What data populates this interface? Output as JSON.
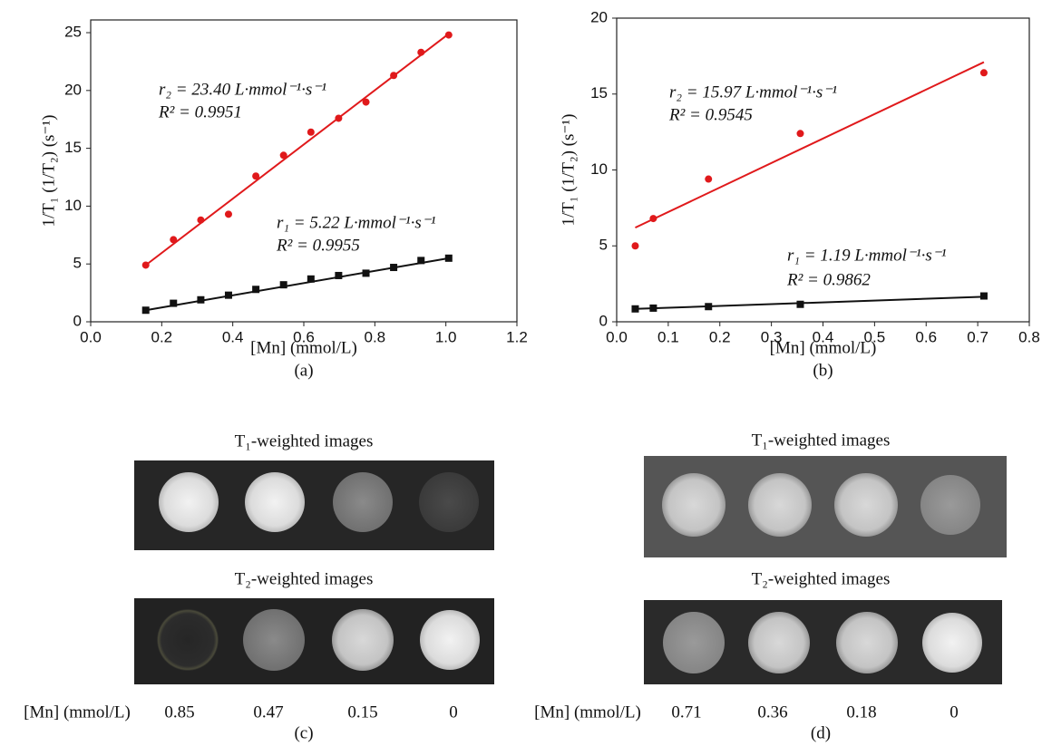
{
  "chart_data": [
    {
      "type": "scatter",
      "x_label": "[Mn] (mmol/L)",
      "y_label": "1/T₁ (1/T₂) (s⁻¹)",
      "caption": "(a)",
      "xlim": [
        0,
        1.2
      ],
      "xticks": [
        {
          "value": 0,
          "label": "0.0"
        },
        0.2,
        0.4,
        0.6,
        0.8,
        {
          "value": 1,
          "label": "1.0"
        },
        1.2
      ],
      "ylim": [
        0,
        26.1
      ],
      "yticks": [
        0,
        5,
        10,
        15,
        20,
        25
      ],
      "annotations": [
        "r₂ = 23.40 L·mmol⁻¹·s⁻¹",
        "R² = 0.9951",
        "r₁ = 5.22 L·mmol⁻¹·s⁻¹",
        "R² = 0.9955"
      ],
      "series": [
        {
          "color": "#e0191b",
          "marker": "circle",
          "x": [
            0.155,
            0.233,
            0.31,
            0.388,
            0.465,
            0.543,
            0.62,
            0.698,
            0.775,
            0.853,
            0.93,
            1.008
          ],
          "values": [
            4.9,
            7.1,
            8.8,
            9.3,
            12.6,
            14.4,
            16.4,
            17.6,
            19.0,
            21.3,
            23.3,
            24.8
          ],
          "fit_x": [
            0.155,
            1.008
          ],
          "fit_values": [
            4.9,
            24.9
          ]
        },
        {
          "color": "#111111",
          "marker": "square",
          "x": [
            0.155,
            0.233,
            0.31,
            0.388,
            0.465,
            0.543,
            0.62,
            0.698,
            0.775,
            0.853,
            0.93,
            1.008
          ],
          "values": [
            1.0,
            1.6,
            1.9,
            2.3,
            2.8,
            3.2,
            3.7,
            4.0,
            4.2,
            4.7,
            5.3,
            5.5
          ],
          "fit_x": [
            0.155,
            1.008
          ],
          "fit_values": [
            1.0,
            5.5
          ]
        }
      ]
    },
    {
      "type": "scatter",
      "x_label": "[Mn] (mmol/L)",
      "y_label": "1/T₁ (1/T₂) (s⁻¹)",
      "caption": "(b)",
      "xlim": [
        0,
        0.8
      ],
      "xticks": [
        {
          "value": 0,
          "label": "0.0"
        },
        0.1,
        0.2,
        0.3,
        0.4,
        0.5,
        0.6,
        0.7,
        0.8
      ],
      "ylim": [
        0,
        20
      ],
      "yticks": [
        0,
        5,
        10,
        15,
        20
      ],
      "annotations": [
        "r₂ = 15.97 L·mmol⁻¹·s⁻¹",
        "R² = 0.9545",
        "r₁ = 1.19 L·mmol⁻¹·s⁻¹",
        "R² = 0.9862"
      ],
      "series": [
        {
          "color": "#e0191b",
          "marker": "circle",
          "x": [
            0.036,
            0.071,
            0.178,
            0.356,
            0.712
          ],
          "values": [
            5.0,
            6.8,
            9.4,
            12.4,
            16.4
          ],
          "fit_x": [
            0.036,
            0.712
          ],
          "fit_values": [
            6.2,
            17.1
          ]
        },
        {
          "color": "#111111",
          "marker": "square",
          "x": [
            0.036,
            0.071,
            0.178,
            0.356,
            0.712
          ],
          "values": [
            0.85,
            0.9,
            1.0,
            1.15,
            1.7
          ],
          "fit_x": [
            0.036,
            0.712
          ],
          "fit_values": [
            0.85,
            1.65
          ]
        }
      ]
    }
  ],
  "panels": [
    {
      "t1_title": "T₁-weighted images",
      "t2_title": "T₂-weighted images",
      "concentration_label": "[Mn] (mmol/L)",
      "concentrations": [
        "0.85",
        "0.47",
        "0.15",
        "0"
      ],
      "caption": "(c)"
    },
    {
      "t1_title": "T₁-weighted images",
      "t2_title": "T₂-weighted images",
      "concentration_label": "[Mn] (mmol/L)",
      "concentrations": [
        "0.71",
        "0.36",
        "0.18",
        "0"
      ],
      "caption": "(d)"
    }
  ]
}
